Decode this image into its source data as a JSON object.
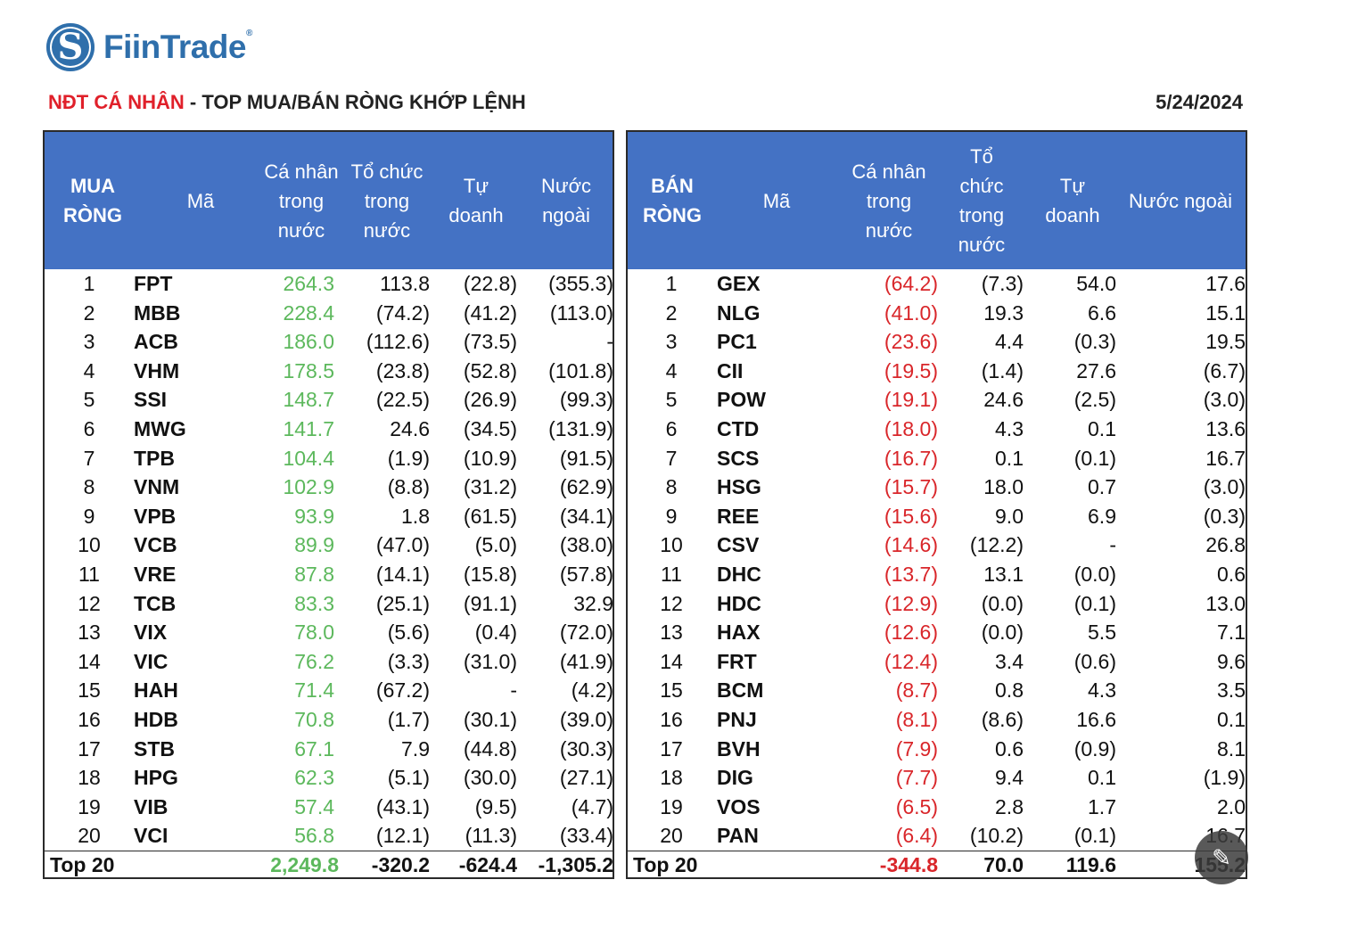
{
  "brand": {
    "name": "FiinTrade",
    "mark": "S",
    "reg": "®"
  },
  "header": {
    "title_red": "NĐT CÁ NHÂN",
    "title_rest": " - TOP MUA/BÁN RÒNG KHỚP LỆNH",
    "date": "5/24/2024"
  },
  "buy_table": {
    "headers": {
      "rank": [
        "MUA",
        "RÒNG"
      ],
      "code": [
        "Mã"
      ],
      "individual": [
        "Cá nhân",
        "trong",
        "nước"
      ],
      "institution": [
        "Tổ chức",
        "trong",
        "nước"
      ],
      "proprietary": [
        "Tự",
        "doanh"
      ],
      "foreign": [
        "Nước",
        "ngoài"
      ]
    },
    "rows": [
      [
        "1",
        "FPT",
        "264.3",
        "113.8",
        "(22.8)",
        "(355.3)"
      ],
      [
        "2",
        "MBB",
        "228.4",
        "(74.2)",
        "(41.2)",
        "(113.0)"
      ],
      [
        "3",
        "ACB",
        "186.0",
        "(112.6)",
        "(73.5)",
        "-"
      ],
      [
        "4",
        "VHM",
        "178.5",
        "(23.8)",
        "(52.8)",
        "(101.8)"
      ],
      [
        "5",
        "SSI",
        "148.7",
        "(22.5)",
        "(26.9)",
        "(99.3)"
      ],
      [
        "6",
        "MWG",
        "141.7",
        "24.6",
        "(34.5)",
        "(131.9)"
      ],
      [
        "7",
        "TPB",
        "104.4",
        "(1.9)",
        "(10.9)",
        "(91.5)"
      ],
      [
        "8",
        "VNM",
        "102.9",
        "(8.8)",
        "(31.2)",
        "(62.9)"
      ],
      [
        "9",
        "VPB",
        "93.9",
        "1.8",
        "(61.5)",
        "(34.1)"
      ],
      [
        "10",
        "VCB",
        "89.9",
        "(47.0)",
        "(5.0)",
        "(38.0)"
      ],
      [
        "11",
        "VRE",
        "87.8",
        "(14.1)",
        "(15.8)",
        "(57.8)"
      ],
      [
        "12",
        "TCB",
        "83.3",
        "(25.1)",
        "(91.1)",
        "32.9"
      ],
      [
        "13",
        "VIX",
        "78.0",
        "(5.6)",
        "(0.4)",
        "(72.0)"
      ],
      [
        "14",
        "VIC",
        "76.2",
        "(3.3)",
        "(31.0)",
        "(41.9)"
      ],
      [
        "15",
        "HAH",
        "71.4",
        "(67.2)",
        "-",
        "(4.2)"
      ],
      [
        "16",
        "HDB",
        "70.8",
        "(1.7)",
        "(30.1)",
        "(39.0)"
      ],
      [
        "17",
        "STB",
        "67.1",
        "7.9",
        "(44.8)",
        "(30.3)"
      ],
      [
        "18",
        "HPG",
        "62.3",
        "(5.1)",
        "(30.0)",
        "(27.1)"
      ],
      [
        "19",
        "VIB",
        "57.4",
        "(43.1)",
        "(9.5)",
        "(4.7)"
      ],
      [
        "20",
        "VCI",
        "56.8",
        "(12.1)",
        "(11.3)",
        "(33.4)"
      ]
    ],
    "total": [
      "Top 20",
      "2,249.8",
      "-320.2",
      "-624.4",
      "-1,305.2"
    ],
    "individual_color": "#5cb85c"
  },
  "sell_table": {
    "headers": {
      "rank": [
        "BÁN",
        "RÒNG"
      ],
      "code": [
        "Mã"
      ],
      "individual": [
        "Cá nhân",
        "trong",
        "nước"
      ],
      "institution": [
        "Tổ",
        "chức",
        "trong",
        "nước"
      ],
      "proprietary": [
        "Tự",
        "doanh"
      ],
      "foreign": [
        "Nước ngoài"
      ]
    },
    "rows": [
      [
        "1",
        "GEX",
        "(64.2)",
        "(7.3)",
        "54.0",
        "17.6"
      ],
      [
        "2",
        "NLG",
        "(41.0)",
        "19.3",
        "6.6",
        "15.1"
      ],
      [
        "3",
        "PC1",
        "(23.6)",
        "4.4",
        "(0.3)",
        "19.5"
      ],
      [
        "4",
        "CII",
        "(19.5)",
        "(1.4)",
        "27.6",
        "(6.7)"
      ],
      [
        "5",
        "POW",
        "(19.1)",
        "24.6",
        "(2.5)",
        "(3.0)"
      ],
      [
        "6",
        "CTD",
        "(18.0)",
        "4.3",
        "0.1",
        "13.6"
      ],
      [
        "7",
        "SCS",
        "(16.7)",
        "0.1",
        "(0.1)",
        "16.7"
      ],
      [
        "8",
        "HSG",
        "(15.7)",
        "18.0",
        "0.7",
        "(3.0)"
      ],
      [
        "9",
        "REE",
        "(15.6)",
        "9.0",
        "6.9",
        "(0.3)"
      ],
      [
        "10",
        "CSV",
        "(14.6)",
        "(12.2)",
        "-",
        "26.8"
      ],
      [
        "11",
        "DHC",
        "(13.7)",
        "13.1",
        "(0.0)",
        "0.6"
      ],
      [
        "12",
        "HDC",
        "(12.9)",
        "(0.0)",
        "(0.1)",
        "13.0"
      ],
      [
        "13",
        "HAX",
        "(12.6)",
        "(0.0)",
        "5.5",
        "7.1"
      ],
      [
        "14",
        "FRT",
        "(12.4)",
        "3.4",
        "(0.6)",
        "9.6"
      ],
      [
        "15",
        "BCM",
        "(8.7)",
        "0.8",
        "4.3",
        "3.5"
      ],
      [
        "16",
        "PNJ",
        "(8.1)",
        "(8.6)",
        "16.6",
        "0.1"
      ],
      [
        "17",
        "BVH",
        "(7.9)",
        "0.6",
        "(0.9)",
        "8.1"
      ],
      [
        "18",
        "DIG",
        "(7.7)",
        "9.4",
        "0.1",
        "(1.9)"
      ],
      [
        "19",
        "VOS",
        "(6.5)",
        "2.8",
        "1.7",
        "2.0"
      ],
      [
        "20",
        "PAN",
        "(6.4)",
        "(10.2)",
        "(0.1)",
        "16.7"
      ]
    ],
    "total": [
      "Top 20",
      "-344.8",
      "70.0",
      "119.6",
      "155.2"
    ],
    "individual_color": "#d9262a"
  },
  "colors": {
    "header_bg": "#4472c4",
    "title_red": "#e0202a",
    "brand_blue": "#2f6fab"
  },
  "overlay": {
    "icon": "edit-icon"
  }
}
